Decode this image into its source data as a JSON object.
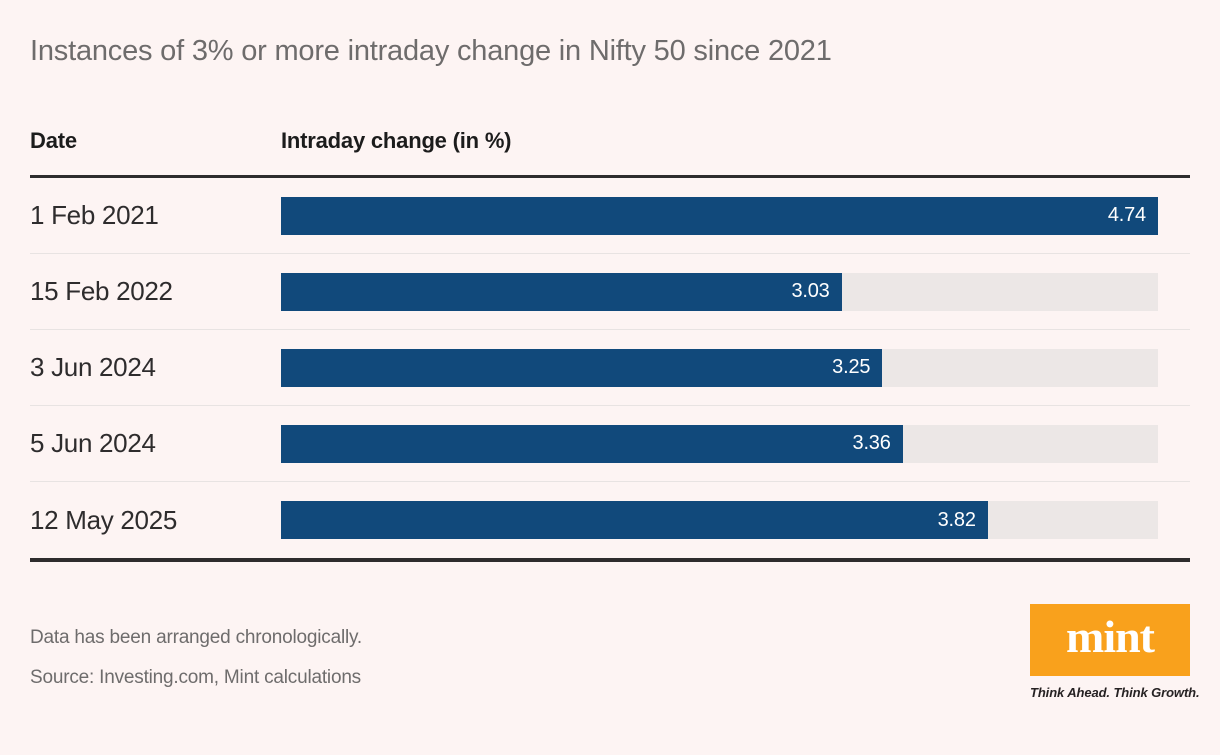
{
  "title": "Instances of 3% or more intraday change in Nifty 50 since 2021",
  "table": {
    "columns": [
      "Date",
      "Intraday change (in %)"
    ]
  },
  "chart_data": {
    "type": "bar",
    "orientation": "horizontal",
    "title": "Instances of 3% or more intraday change in Nifty 50 since 2021",
    "categories": [
      "1 Feb 2021",
      "15 Feb 2022",
      "3 Jun 2024",
      "5 Jun 2024",
      "12 May 2025"
    ],
    "values": [
      4.74,
      3.03,
      3.25,
      3.36,
      3.82
    ],
    "value_label": "Intraday change (in %)",
    "xlim": [
      0,
      4.74
    ],
    "grid": false,
    "legend_position": "none",
    "value_labels_inside_bars": true,
    "bar_color": "#11497B",
    "track_color": "#ECE7E6"
  },
  "footer": {
    "note": "Data has been arranged chronologically.",
    "source": "Source: Investing.com, Mint calculations"
  },
  "branding": {
    "logo_text": "mint",
    "tagline": "Think Ahead. Think Growth."
  },
  "colors": {
    "bg": "#FDF4F3",
    "bar": "#11497B",
    "track": "#ECE7E6",
    "muted": "#6E6C6C",
    "ink": "#1C1C1C",
    "date-ink": "#2E2C2D",
    "rule": "#2E2C2D",
    "separator": "#E8E3E2",
    "orange": "#F9A11C",
    "tagline-ink": "#262223"
  }
}
